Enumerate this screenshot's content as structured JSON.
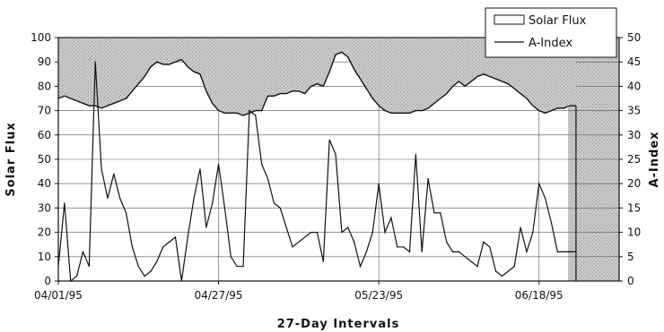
{
  "chart_data": {
    "type": "line",
    "xlabel": "27-Day Intervals",
    "ylabel": "Solar Flux",
    "y2label": "A-Index",
    "ylim": [
      0,
      100
    ],
    "y2lim": [
      0,
      50
    ],
    "yticks": [
      0,
      10,
      20,
      30,
      40,
      50,
      60,
      70,
      80,
      90,
      100
    ],
    "y2ticks": [
      0,
      5,
      10,
      15,
      20,
      25,
      30,
      35,
      40,
      45,
      50
    ],
    "x_tick_labels": [
      {
        "day": 0,
        "label": "04/01/95"
      },
      {
        "day": 26,
        "label": "04/27/95"
      },
      {
        "day": 52,
        "label": "05/23/95"
      },
      {
        "day": 78,
        "label": "06/18/95"
      }
    ],
    "xlim": [
      0,
      91
    ],
    "grid": true,
    "legend": "top-right",
    "series": [
      {
        "name": "Solar Flux",
        "axis": "left",
        "style": "filled",
        "color": "#bfbfbf",
        "x": [
          0,
          1,
          2,
          3,
          4,
          5,
          6,
          7,
          8,
          9,
          10,
          11,
          12,
          13,
          14,
          15,
          16,
          17,
          18,
          19,
          20,
          21,
          22,
          23,
          24,
          25,
          26,
          27,
          28,
          29,
          30,
          31,
          32,
          33,
          34,
          35,
          36,
          37,
          38,
          39,
          40,
          41,
          42,
          43,
          44,
          45,
          46,
          47,
          48,
          49,
          50,
          51,
          52,
          53,
          54,
          55,
          56,
          57,
          58,
          59,
          60,
          61,
          62,
          63,
          64,
          65,
          66,
          67,
          68,
          69,
          70,
          71,
          72,
          73,
          74,
          75,
          76,
          77,
          78,
          79,
          80,
          81,
          82,
          83,
          84
        ],
        "values": [
          75,
          76,
          75,
          74,
          73,
          72,
          72,
          71,
          72,
          73,
          74,
          75,
          78,
          81,
          84,
          88,
          90,
          89,
          89,
          90,
          91,
          88,
          86,
          85,
          78,
          73,
          70,
          69,
          69,
          69,
          68,
          69,
          70,
          70,
          76,
          76,
          77,
          77,
          78,
          78,
          77,
          80,
          81,
          80,
          86,
          93,
          94,
          92,
          87,
          83,
          79,
          75,
          72,
          70,
          69,
          69,
          69,
          69,
          70,
          70,
          71,
          73,
          75,
          77,
          80,
          82,
          80,
          82,
          84,
          85,
          84,
          83,
          82,
          81,
          79,
          77,
          75,
          72,
          70,
          69,
          70,
          71,
          71,
          72,
          72
        ]
      },
      {
        "name": "A-Index",
        "axis": "right",
        "style": "line",
        "color": "#111111",
        "x": [
          0,
          1,
          2,
          3,
          4,
          5,
          6,
          7,
          8,
          9,
          10,
          11,
          12,
          13,
          14,
          15,
          16,
          17,
          18,
          19,
          20,
          21,
          22,
          23,
          24,
          25,
          26,
          27,
          28,
          29,
          30,
          31,
          32,
          33,
          34,
          35,
          36,
          37,
          38,
          39,
          40,
          41,
          42,
          43,
          44,
          45,
          46,
          47,
          48,
          49,
          50,
          51,
          52,
          53,
          54,
          55,
          56,
          57,
          58,
          59,
          60,
          61,
          62,
          63,
          64,
          65,
          66,
          67,
          68,
          69,
          70,
          71,
          72,
          73,
          74,
          75,
          76,
          77,
          78,
          79,
          80,
          81,
          82,
          83,
          84
        ],
        "values": [
          3,
          16,
          0,
          1,
          6,
          3,
          45,
          23,
          17,
          22,
          17,
          14,
          7,
          3,
          1,
          2,
          4,
          7,
          8,
          9,
          0,
          9,
          17,
          23,
          11,
          16,
          24,
          15,
          5,
          3,
          3,
          35,
          34,
          24,
          21,
          16,
          15,
          11,
          7,
          8,
          9,
          10,
          10,
          4,
          29,
          26,
          10,
          11,
          8,
          3,
          6,
          10,
          20,
          10,
          13,
          7,
          7,
          6,
          26,
          6,
          21,
          14,
          14,
          8,
          6,
          6,
          5,
          4,
          3,
          8,
          7,
          2,
          1,
          2,
          3,
          11,
          6,
          10,
          20,
          17,
          12,
          6,
          6,
          6,
          6
        ]
      }
    ]
  }
}
